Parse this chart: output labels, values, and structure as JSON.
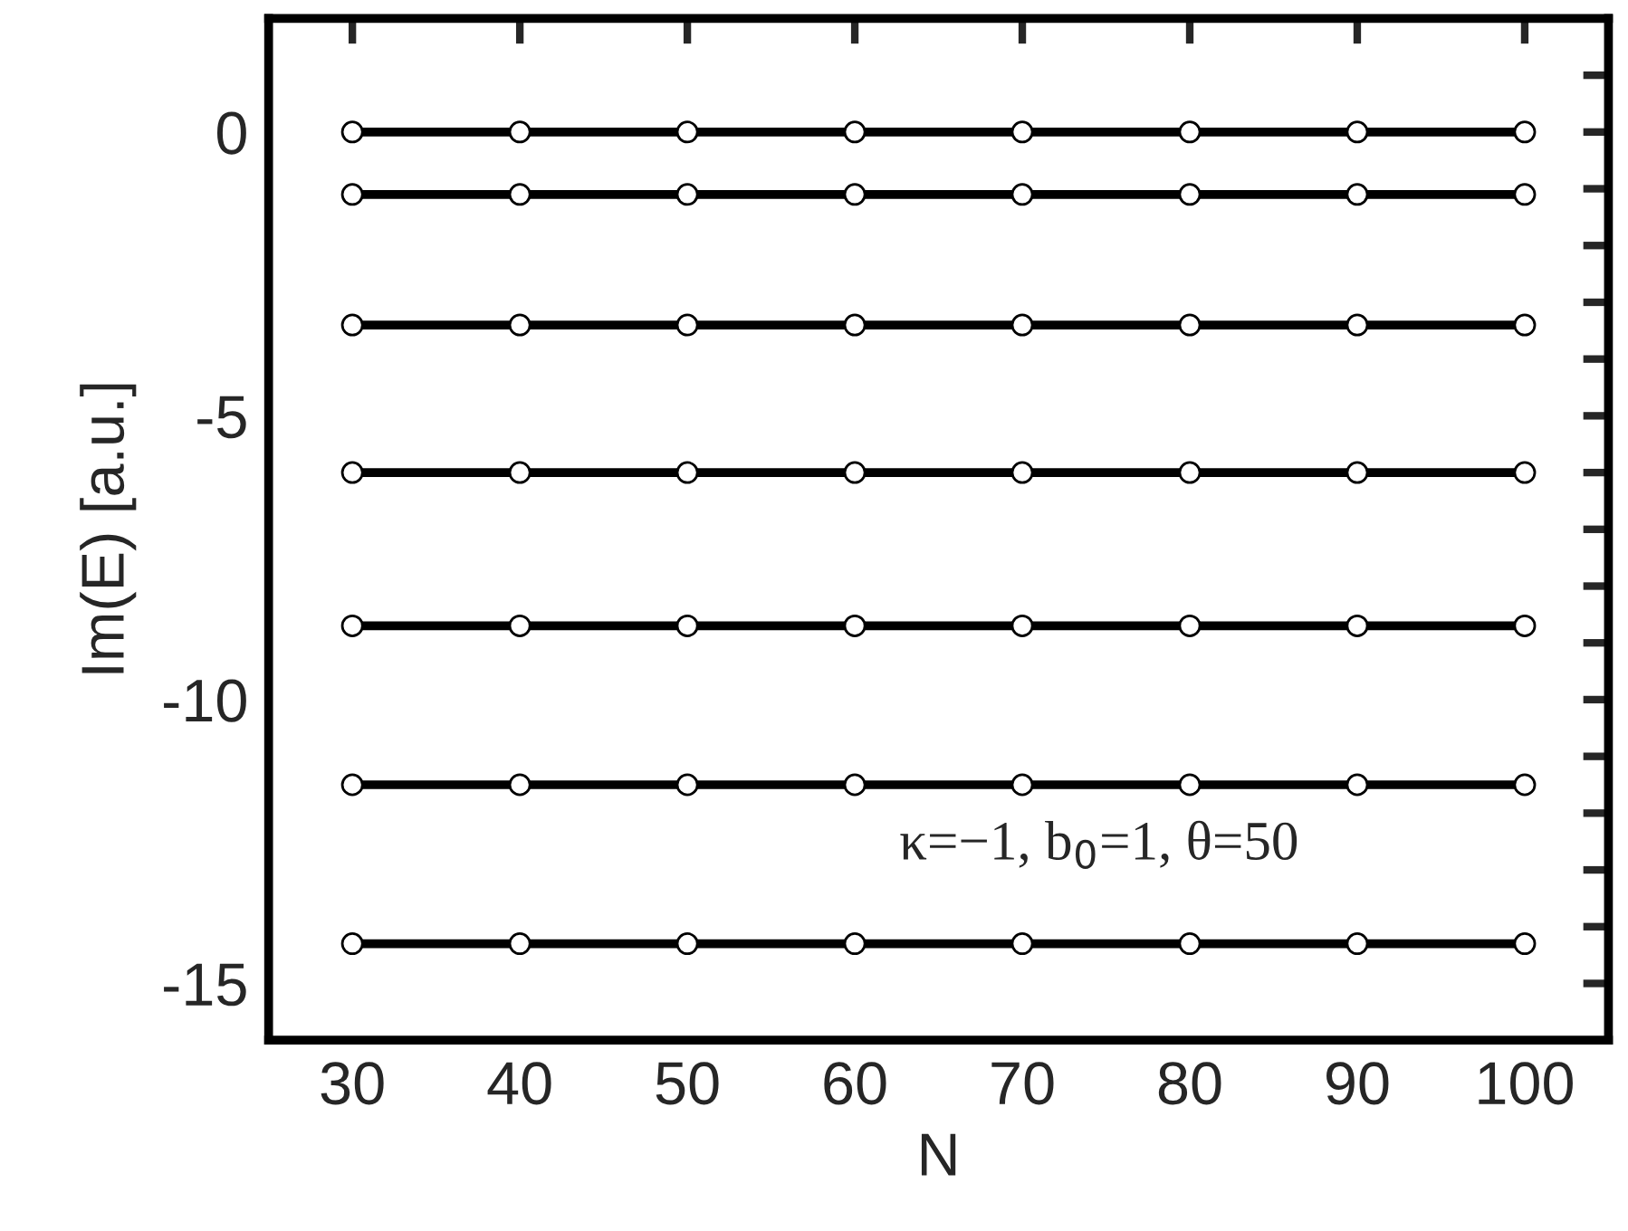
{
  "chart_data": {
    "type": "line",
    "xlabel": "N",
    "ylabel": "Im(E) [a.u.]",
    "x": [
      30,
      40,
      50,
      60,
      70,
      80,
      90,
      100
    ],
    "series": [
      {
        "color": "#000000",
        "values": [
          0,
          0,
          0,
          0,
          0,
          0,
          0,
          0
        ]
      },
      {
        "color": "#000000",
        "values": [
          -1.1,
          -1.1,
          -1.1,
          -1.1,
          -1.1,
          -1.1,
          -1.1,
          -1.1
        ]
      },
      {
        "color": "#000000",
        "values": [
          -3.4,
          -3.4,
          -3.4,
          -3.4,
          -3.4,
          -3.4,
          -3.4,
          -3.4
        ]
      },
      {
        "color": "#000000",
        "values": [
          -6.0,
          -6.0,
          -6.0,
          -6.0,
          -6.0,
          -6.0,
          -6.0,
          -6.0
        ]
      },
      {
        "color": "#000000",
        "values": [
          -8.7,
          -8.7,
          -8.7,
          -8.7,
          -8.7,
          -8.7,
          -8.7,
          -8.7
        ]
      },
      {
        "color": "#000000",
        "values": [
          -11.5,
          -11.5,
          -11.5,
          -11.5,
          -11.5,
          -11.5,
          -11.5,
          -11.5
        ]
      },
      {
        "color": "#000000",
        "values": [
          -14.3,
          -14.3,
          -14.3,
          -14.3,
          -14.3,
          -14.3,
          -14.3,
          -14.3
        ]
      }
    ],
    "xlim": [
      25,
      105
    ],
    "xticks": [
      30,
      40,
      50,
      60,
      70,
      80,
      90,
      100
    ],
    "ylim": [
      -16,
      2
    ],
    "yticks": [
      -15,
      {
        "value": -14,
        "label": null
      },
      {
        "value": -13,
        "label": null
      },
      {
        "value": -12,
        "label": null
      },
      {
        "value": -11,
        "label": null
      },
      -10,
      {
        "value": -9,
        "label": null
      },
      {
        "value": -8,
        "label": null
      },
      {
        "value": -7,
        "label": null
      },
      {
        "value": -6,
        "label": null
      },
      -5,
      {
        "value": -4,
        "label": null
      },
      {
        "value": -3,
        "label": null
      },
      {
        "value": -2,
        "label": null
      },
      {
        "value": -1,
        "label": null
      },
      0,
      {
        "value": 1,
        "label": null
      }
    ],
    "annotations": [
      "κ=−1, b$_{0}$=1, θ=50"
    ],
    "marker": "circle",
    "line_style": "solid",
    "grid": false,
    "legend": false
  }
}
